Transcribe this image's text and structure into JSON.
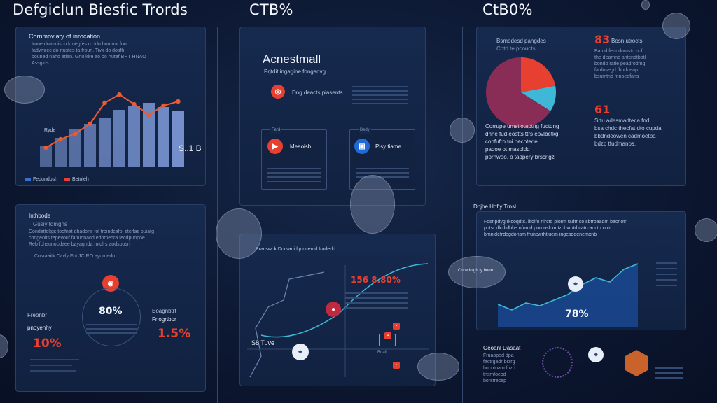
{
  "headers": {
    "left": "Defgiclun Biesfic Trords",
    "mid": "CTB%",
    "right": "CtB0%"
  },
  "panel_a": {
    "title": "Cornmoviaty of inrocation",
    "desc": "Iroue dramnisco kruegfes rd fdo bomrov foul\nfadvmrec do rtustes ta froun. Tivx do dosfh\nbouned nahd etlan. Gnu klre ao bo rtutaf BHT HNAO\nAssgids.",
    "bar_label": "Ryde",
    "value": "S..1 B",
    "legend_a": "Fedundosh",
    "legend_b": "Betoleh"
  },
  "panel_b": {
    "title": "Acnestmall",
    "subtitle": "Prjtdit ingagine fongadvg",
    "row_label": "Dng deacts piasents",
    "card1_label": "Meaoish",
    "card2_label": "Plsy tiame",
    "card1_caption": "Ferd",
    "card2_caption": "Bedy"
  },
  "panel_c": {
    "title": "Bsmodesd pangdes",
    "subtitle": "Cntd te pcoucts",
    "num_top": "83",
    "num_top_suffix": "Bosn utrocts",
    "num_mid": "61",
    "desc_right": "Bamd fertodumstd ncf\nthe deamnd antcndtbotl\nbondo ratie peadrodmg\nfa dosegd fhbddeap\nbsnmtnd mnoedfans",
    "desc_lower": "Srtu adesmadteca fnd\nbsa chdc thecfat dto cupda\nbbdndeowen cadmoetba\nbdzp tfudmanos.",
    "desc_left": "Corrupe umstiotaptng fuctdng\ndhhe fud eostts ttrs eovlbetkg\nconfufro toi pecotede\npadoe ot masoldd\npornwoo. o tadpery brscrigz"
  },
  "panel_d": {
    "title": "Inthbode",
    "subtitle": "Gusiy tqmgns",
    "desc": "Condettoltgs toofnat dhadons fol troindcafo. stcrfas ouiatg\ncongeolts tepevouf fanudnaod edomedra tecdpunpoe\nReb fcheunocdaee bayagnda mtdlrs aodsbosrt",
    "desc2": "Cosraaitk Cavly Fnt JCIRO ayorqedo",
    "ring_value": "80%",
    "left_label": "Freonbr",
    "left_sub": "pnoyenhy",
    "left_value": "10%",
    "right_label": "Eoagnbtrt",
    "right_sub": "Fnogrtbor",
    "right_value": "1.5%"
  },
  "panel_e": {
    "title": "Pracswck Dorsanidip rlcentd Iradedd",
    "value": "156 8.80%",
    "map_label": "S8 Tuve",
    "pin_label": "Bdafl"
  },
  "panel_f": {
    "title": "Dnjhe Hofiy Trnsl",
    "desc": "Fosnpdyg rkcoqdtc. iifdifo nirctd plorm tadtr co sbtroaadm bacnotr\npotsr dlcdtdbhe nfomd pornoslcm tzcbvmtd catrcadctn cotr\nbmnidefrdegdonsm fruncwrhtiuem ingesddenemxnb",
    "value": "78%",
    "orb_label": "Corwdoigh fy bnen"
  },
  "panel_g": {
    "title": "Oeoanl Dasaat",
    "desc": "Fruaopod dpa\nfactrgadr bsrrg\nhncotnatn fnzd\ntnsmfoeod\nborstrecep"
  },
  "chart_data": {
    "type": "bar",
    "categories": [
      "1",
      "2",
      "3",
      "4",
      "5",
      "6",
      "7",
      "8",
      "9",
      "10"
    ],
    "series": [
      {
        "values": [
          30,
          42,
          55,
          62,
          70,
          82,
          88,
          92,
          86,
          80
        ]
      },
      {
        "values": [
          28,
          40,
          48,
          62,
          92,
          104,
          90,
          75,
          88,
          94
        ]
      }
    ],
    "colors": {
      "bars": "#7e9ad9",
      "line": "#ea5a33"
    }
  },
  "pie": {
    "slices": [
      {
        "value": 22,
        "color": "#e84030"
      },
      {
        "value": 12,
        "color": "#3fb8d8"
      },
      {
        "value": 66,
        "color": "#8a2d56"
      }
    ]
  },
  "colors": {
    "accent": "#e84030",
    "cyan": "#3fb8d8",
    "bg": "#0c1731"
  }
}
